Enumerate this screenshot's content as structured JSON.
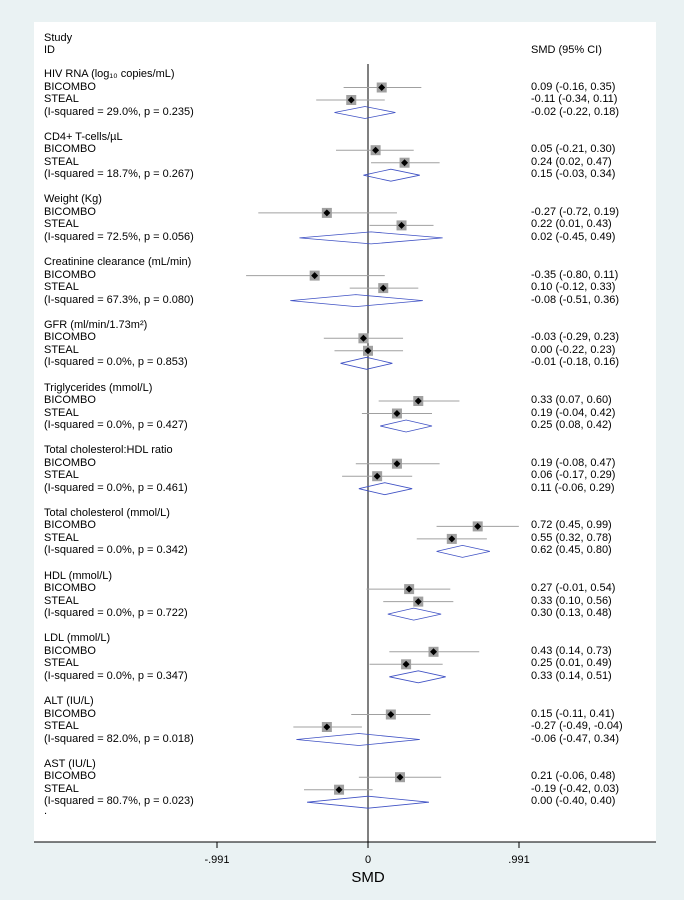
{
  "header": {
    "study": "Study",
    "id": "ID",
    "estimate": "SMD (95% CI)"
  },
  "chart_data": {
    "type": "forest",
    "xlabel": "SMD",
    "x_ticks": [
      -0.991,
      0,
      0.991
    ],
    "x_tick_labels": [
      "-.991",
      "0",
      ".991"
    ],
    "xlim": [
      -1.1,
      1.1
    ],
    "null_line": 0,
    "colors": {
      "marker_box": "#a0a0a0",
      "point": "#000000",
      "ci_line": "#a0a0a0",
      "diamond": "#3f51c4",
      "null_line": "#000000"
    },
    "groups": [
      {
        "name": "HIV RNA (log₁₀ copies/mL)",
        "studies": [
          {
            "label": "BICOMBO",
            "est": 0.09,
            "lo": -0.16,
            "hi": 0.35,
            "text": "0.09 (-0.16, 0.35)"
          },
          {
            "label": "STEAL",
            "est": -0.11,
            "lo": -0.34,
            "hi": 0.11,
            "text": "-0.11 (-0.34, 0.11)"
          }
        ],
        "overall": {
          "label": " (I-squared = 29.0%, p = 0.235)",
          "est": -0.02,
          "lo": -0.22,
          "hi": 0.18,
          "text": "-0.02 (-0.22, 0.18)"
        }
      },
      {
        "name": "CD4+ T-cells/µL",
        "studies": [
          {
            "label": "BICOMBO",
            "est": 0.05,
            "lo": -0.21,
            "hi": 0.3,
            "text": "0.05 (-0.21, 0.30)"
          },
          {
            "label": "STEAL",
            "est": 0.24,
            "lo": 0.02,
            "hi": 0.47,
            "text": "0.24 (0.02, 0.47)"
          }
        ],
        "overall": {
          "label": "(I-squared = 18.7%, p = 0.267)",
          "est": 0.15,
          "lo": -0.03,
          "hi": 0.34,
          "text": "0.15 (-0.03, 0.34)"
        }
      },
      {
        "name": "Weight (Kg)",
        "studies": [
          {
            "label": "BICOMBO",
            "est": -0.27,
            "lo": -0.72,
            "hi": 0.19,
            "text": "-0.27 (-0.72, 0.19)"
          },
          {
            "label": "STEAL",
            "est": 0.22,
            "lo": 0.01,
            "hi": 0.43,
            "text": "0.22 (0.01, 0.43)"
          }
        ],
        "overall": {
          "label": " (I-squared = 72.5%, p = 0.056)",
          "est": 0.02,
          "lo": -0.45,
          "hi": 0.49,
          "text": "0.02 (-0.45, 0.49)"
        }
      },
      {
        "name": "Creatinine clearance (mL/min)",
        "studies": [
          {
            "label": "BICOMBO",
            "est": -0.35,
            "lo": -0.8,
            "hi": 0.11,
            "text": "-0.35 (-0.80, 0.11)"
          },
          {
            "label": "STEAL",
            "est": 0.1,
            "lo": -0.12,
            "hi": 0.33,
            "text": "0.10 (-0.12, 0.33)"
          }
        ],
        "overall": {
          "label": " (I-squared = 67.3%, p = 0.080)",
          "est": -0.08,
          "lo": -0.51,
          "hi": 0.36,
          "text": "-0.08 (-0.51, 0.36)"
        }
      },
      {
        "name": "GFR (ml/min/1.73m²)",
        "studies": [
          {
            "label": "BICOMBO",
            "est": -0.03,
            "lo": -0.29,
            "hi": 0.23,
            "text": "-0.03 (-0.29, 0.23)"
          },
          {
            "label": "STEAL",
            "est": 0.0,
            "lo": -0.22,
            "hi": 0.23,
            "text": "0.00 (-0.22, 0.23)"
          }
        ],
        "overall": {
          "label": "(I-squared = 0.0%, p = 0.853)",
          "est": -0.01,
          "lo": -0.18,
          "hi": 0.16,
          "text": "-0.01 (-0.18, 0.16)"
        }
      },
      {
        "name": "Triglycerides (mmol/L)",
        "studies": [
          {
            "label": "BICOMBO",
            "est": 0.33,
            "lo": 0.07,
            "hi": 0.6,
            "text": "0.33 (0.07, 0.60)"
          },
          {
            "label": "STEAL",
            "est": 0.19,
            "lo": -0.04,
            "hi": 0.42,
            "text": "0.19 (-0.04, 0.42)"
          }
        ],
        "overall": {
          "label": "(I-squared = 0.0%, p = 0.427)",
          "est": 0.25,
          "lo": 0.08,
          "hi": 0.42,
          "text": "0.25 (0.08, 0.42)"
        }
      },
      {
        "name": "Total cholesterol:HDL ratio",
        "studies": [
          {
            "label": "BICOMBO",
            "est": 0.19,
            "lo": -0.08,
            "hi": 0.47,
            "text": "0.19 (-0.08, 0.47)"
          },
          {
            "label": "STEAL",
            "est": 0.06,
            "lo": -0.17,
            "hi": 0.29,
            "text": "0.06 (-0.17, 0.29)"
          }
        ],
        "overall": {
          "label": "(I-squared = 0.0%, p = 0.461)",
          "est": 0.11,
          "lo": -0.06,
          "hi": 0.29,
          "text": "0.11 (-0.06, 0.29)"
        }
      },
      {
        "name": "Total cholesterol (mmol/L)",
        "studies": [
          {
            "label": "BICOMBO",
            "est": 0.72,
            "lo": 0.45,
            "hi": 0.99,
            "text": "0.72 (0.45, 0.99)"
          },
          {
            "label": "STEAL",
            "est": 0.55,
            "lo": 0.32,
            "hi": 0.78,
            "text": "0.55 (0.32, 0.78)"
          }
        ],
        "overall": {
          "label": "(I-squared = 0.0%, p = 0.342)",
          "est": 0.62,
          "lo": 0.45,
          "hi": 0.8,
          "text": "0.62 (0.45, 0.80)"
        }
      },
      {
        "name": "HDL (mmol/L)",
        "studies": [
          {
            "label": "BICOMBO",
            "est": 0.27,
            "lo": -0.01,
            "hi": 0.54,
            "text": "0.27 (-0.01, 0.54)"
          },
          {
            "label": "STEAL",
            "est": 0.33,
            "lo": 0.1,
            "hi": 0.56,
            "text": "0.33 (0.10, 0.56)"
          }
        ],
        "overall": {
          "label": "(I-squared = 0.0%, p = 0.722)",
          "est": 0.3,
          "lo": 0.13,
          "hi": 0.48,
          "text": "0.30 (0.13, 0.48)"
        }
      },
      {
        "name": "LDL (mmol/L)",
        "studies": [
          {
            "label": "BICOMBO",
            "est": 0.43,
            "lo": 0.14,
            "hi": 0.73,
            "text": "0.43 (0.14, 0.73)"
          },
          {
            "label": "STEAL",
            "est": 0.25,
            "lo": 0.01,
            "hi": 0.49,
            "text": "0.25 (0.01, 0.49)"
          }
        ],
        "overall": {
          "label": "(I-squared = 0.0%, p = 0.347)",
          "est": 0.33,
          "lo": 0.14,
          "hi": 0.51,
          "text": "0.33 (0.14, 0.51)"
        }
      },
      {
        "name": "ALT (IU/L)",
        "studies": [
          {
            "label": "BICOMBO",
            "est": 0.15,
            "lo": -0.11,
            "hi": 0.41,
            "text": "0.15 (-0.11, 0.41)"
          },
          {
            "label": "STEAL",
            "est": -0.27,
            "lo": -0.49,
            "hi": -0.04,
            "text": "-0.27 (-0.49, -0.04)"
          }
        ],
        "overall": {
          "label": "(I-squared = 82.0%, p = 0.018)",
          "est": -0.06,
          "lo": -0.47,
          "hi": 0.34,
          "text": "-0.06 (-0.47, 0.34)"
        }
      },
      {
        "name": "AST (IU/L)",
        "studies": [
          {
            "label": "BICOMBO",
            "est": 0.21,
            "lo": -0.06,
            "hi": 0.48,
            "text": "0.21 (-0.06, 0.48)"
          },
          {
            "label": "STEAL",
            "est": -0.19,
            "lo": -0.42,
            "hi": 0.03,
            "text": "-0.19 (-0.42, 0.03)"
          }
        ],
        "overall": {
          "label": " (I-squared = 80.7%, p = 0.023)",
          "est": 0.0,
          "lo": -0.4,
          "hi": 0.4,
          "text": "0.00 (-0.40, 0.40)"
        }
      }
    ],
    "footnote": "."
  }
}
